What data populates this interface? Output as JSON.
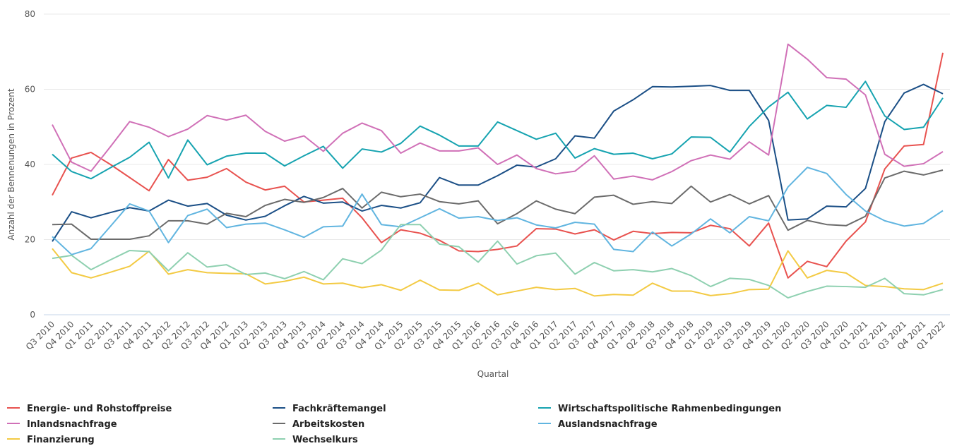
{
  "chart_data": {
    "type": "line",
    "x_label": "Quartal",
    "y_label": "Anzahl der Bennenungen in Prozent",
    "categories": [
      "Q3 2010",
      "Q4 2010",
      "Q1 2011",
      "Q2 2011",
      "Q3 2011",
      "Q4 2011",
      "Q1 2012",
      "Q2 2012",
      "Q3 2012",
      "Q4 2012",
      "Q1 2013",
      "Q2 2013",
      "Q3 2013",
      "Q4 2013",
      "Q1 2014",
      "Q2 2014",
      "Q3 2014",
      "Q4 2014",
      "Q1 2015",
      "Q2 2015",
      "Q3 2015",
      "Q4 2015",
      "Q1 2016",
      "Q2 2016",
      "Q3 2016",
      "Q4 2016",
      "Q1 2017",
      "Q2 2017",
      "Q3 2017",
      "Q4 2017",
      "Q1 2018",
      "Q2 2018",
      "Q3 2018",
      "Q4 2018",
      "Q1 2019",
      "Q2 2019",
      "Q3 2019",
      "Q4 2019",
      "Q1 2020",
      "Q2 2020",
      "Q3 2020",
      "Q4 2020",
      "Q1 2021",
      "Q2 2021",
      "Q3 2021",
      "Q4 2021",
      "Q1 2022"
    ],
    "ylim": [
      0,
      80
    ],
    "yticks": [
      0,
      20,
      40,
      60,
      80
    ],
    "grid": true,
    "series": [
      {
        "name": "Energie- und Rohstoffpreise",
        "color": "#e8524f",
        "values": [
          31.8,
          41.7,
          43.2,
          40,
          36.5,
          33,
          41.3,
          35.8,
          36.6,
          38.9,
          35.3,
          33.2,
          34.2,
          30,
          30.5,
          31,
          25.8,
          19.2,
          22.6,
          21.7,
          19.8,
          17,
          16.8,
          17.4,
          18.3,
          22.9,
          22.8,
          21.5,
          22.6,
          19.9,
          22.2,
          21.6,
          21.9,
          21.8,
          23.8,
          22.9,
          18.3,
          24.4,
          9.8,
          14.2,
          12.8,
          19.6,
          24.7,
          38.8,
          44.9,
          45.3,
          69.7
        ]
      },
      {
        "name": "Fachkräftemangel",
        "color": "#1b4f86",
        "values": [
          19.5,
          27.4,
          25.8,
          27.2,
          28.5,
          27.6,
          30.5,
          28.9,
          29.6,
          26.5,
          25.2,
          26.2,
          29,
          31.5,
          29.7,
          30,
          27.6,
          29.1,
          28.4,
          29.8,
          36.5,
          34.5,
          34.5,
          37,
          39.8,
          39.3,
          41.5,
          47.6,
          47,
          54.2,
          57.2,
          60.7,
          60.6,
          60.8,
          61,
          59.7,
          59.7,
          51.7,
          25.2,
          25.5,
          28.9,
          28.7,
          33.6,
          51.4,
          59,
          61.3,
          58.8
        ]
      },
      {
        "name": "Wirtschaftspolitische Rahmenbedingungen",
        "color": "#16a3b0",
        "values": [
          42.7,
          38.1,
          36.2,
          39.1,
          41.9,
          45.9,
          36.4,
          46.5,
          39.9,
          42.2,
          43,
          43,
          39.6,
          42.3,
          44.8,
          39,
          44.1,
          43.3,
          45.6,
          50.2,
          47.8,
          44.9,
          44.9,
          51.3,
          49,
          46.7,
          48.3,
          41.7,
          44.2,
          42.7,
          43,
          41.5,
          42.8,
          47.3,
          47.2,
          43.3,
          50.1,
          55.3,
          59.2,
          52.1,
          55.7,
          55.2,
          62.1,
          52.9,
          49.3,
          49.9,
          57.7
        ]
      },
      {
        "name": "Inlandsnachfrage",
        "color": "#d070b7",
        "values": [
          50.6,
          40.6,
          38.2,
          44.7,
          51.4,
          49.9,
          47.4,
          49.4,
          53,
          51.8,
          53.1,
          48.8,
          46.2,
          47.6,
          43.5,
          48.3,
          51,
          49,
          43,
          45.7,
          43.6,
          43.6,
          44.4,
          40,
          42.5,
          38.9,
          37.5,
          38.2,
          42.3,
          36.1,
          36.9,
          35.9,
          38.1,
          41,
          42.5,
          41.4,
          46,
          42.5,
          72,
          68,
          63.1,
          62.7,
          58.5,
          42.7,
          39.5,
          40.2,
          43.4
        ]
      },
      {
        "name": "Arbeitskosten",
        "color": "#6b6b6b",
        "values": [
          24,
          24.1,
          20.1,
          20.1,
          20.1,
          21,
          25,
          25,
          24.1,
          27,
          26.1,
          29.1,
          30.7,
          29.9,
          31.2,
          33.6,
          28.4,
          32.6,
          31.4,
          32.1,
          30.1,
          29.5,
          30.3,
          24.2,
          26.9,
          30.3,
          28.1,
          26.9,
          31.3,
          31.8,
          29.4,
          30.1,
          29.6,
          34.2,
          30,
          32,
          29.5,
          31.7,
          22.5,
          25.1,
          24,
          23.7,
          26.2,
          36.4,
          38.2,
          37.2,
          38.5
        ]
      },
      {
        "name": "Auslandsnachfrage",
        "color": "#61b5e0",
        "values": [
          20.8,
          16,
          17.6,
          23.5,
          29.5,
          27.6,
          19.2,
          26.4,
          28.1,
          23.2,
          24.1,
          24.4,
          22.6,
          20.6,
          23.4,
          23.6,
          32.1,
          24,
          23.4,
          25.8,
          28.2,
          25.7,
          26.1,
          25.1,
          25.8,
          23.9,
          23.1,
          24.6,
          24.1,
          17.4,
          16.8,
          22,
          18.3,
          21.5,
          25.5,
          21.8,
          26.1,
          25,
          34,
          39.2,
          37.6,
          32,
          27.6,
          25,
          23.6,
          24.3,
          27.7
        ]
      },
      {
        "name": "Finanzierung",
        "color": "#f3ca43",
        "values": [
          17.6,
          11.2,
          9.8,
          11.3,
          12.9,
          16.9,
          10.8,
          12,
          11.2,
          11,
          10.9,
          8.2,
          8.9,
          10,
          8.2,
          8.4,
          7.2,
          8,
          6.5,
          9.2,
          6.6,
          6.5,
          8.4,
          5.3,
          6.3,
          7.3,
          6.7,
          7,
          5,
          5.4,
          5.2,
          8.4,
          6.3,
          6.3,
          5.1,
          5.6,
          6.7,
          6.8,
          17,
          9.8,
          11.8,
          11.1,
          7.8,
          7.5,
          6.9,
          6.7,
          8.4
        ]
      },
      {
        "name": "Wechselkurs",
        "color": "#8ed0b0",
        "values": [
          15,
          15.8,
          12,
          14.6,
          17.1,
          16.8,
          11.7,
          16.5,
          12.7,
          13.3,
          10.7,
          11.1,
          9.6,
          11.5,
          9.3,
          14.9,
          13.6,
          17.2,
          24,
          24,
          18.8,
          18.1,
          14,
          19.6,
          13.5,
          15.7,
          16.4,
          10.8,
          13.9,
          11.7,
          12,
          11.4,
          12.3,
          10.4,
          7.5,
          9.7,
          9.4,
          7.8,
          4.5,
          6.2,
          7.6,
          7.5,
          7.3,
          9.7,
          5.6,
          5.3,
          6.7
        ]
      }
    ]
  }
}
